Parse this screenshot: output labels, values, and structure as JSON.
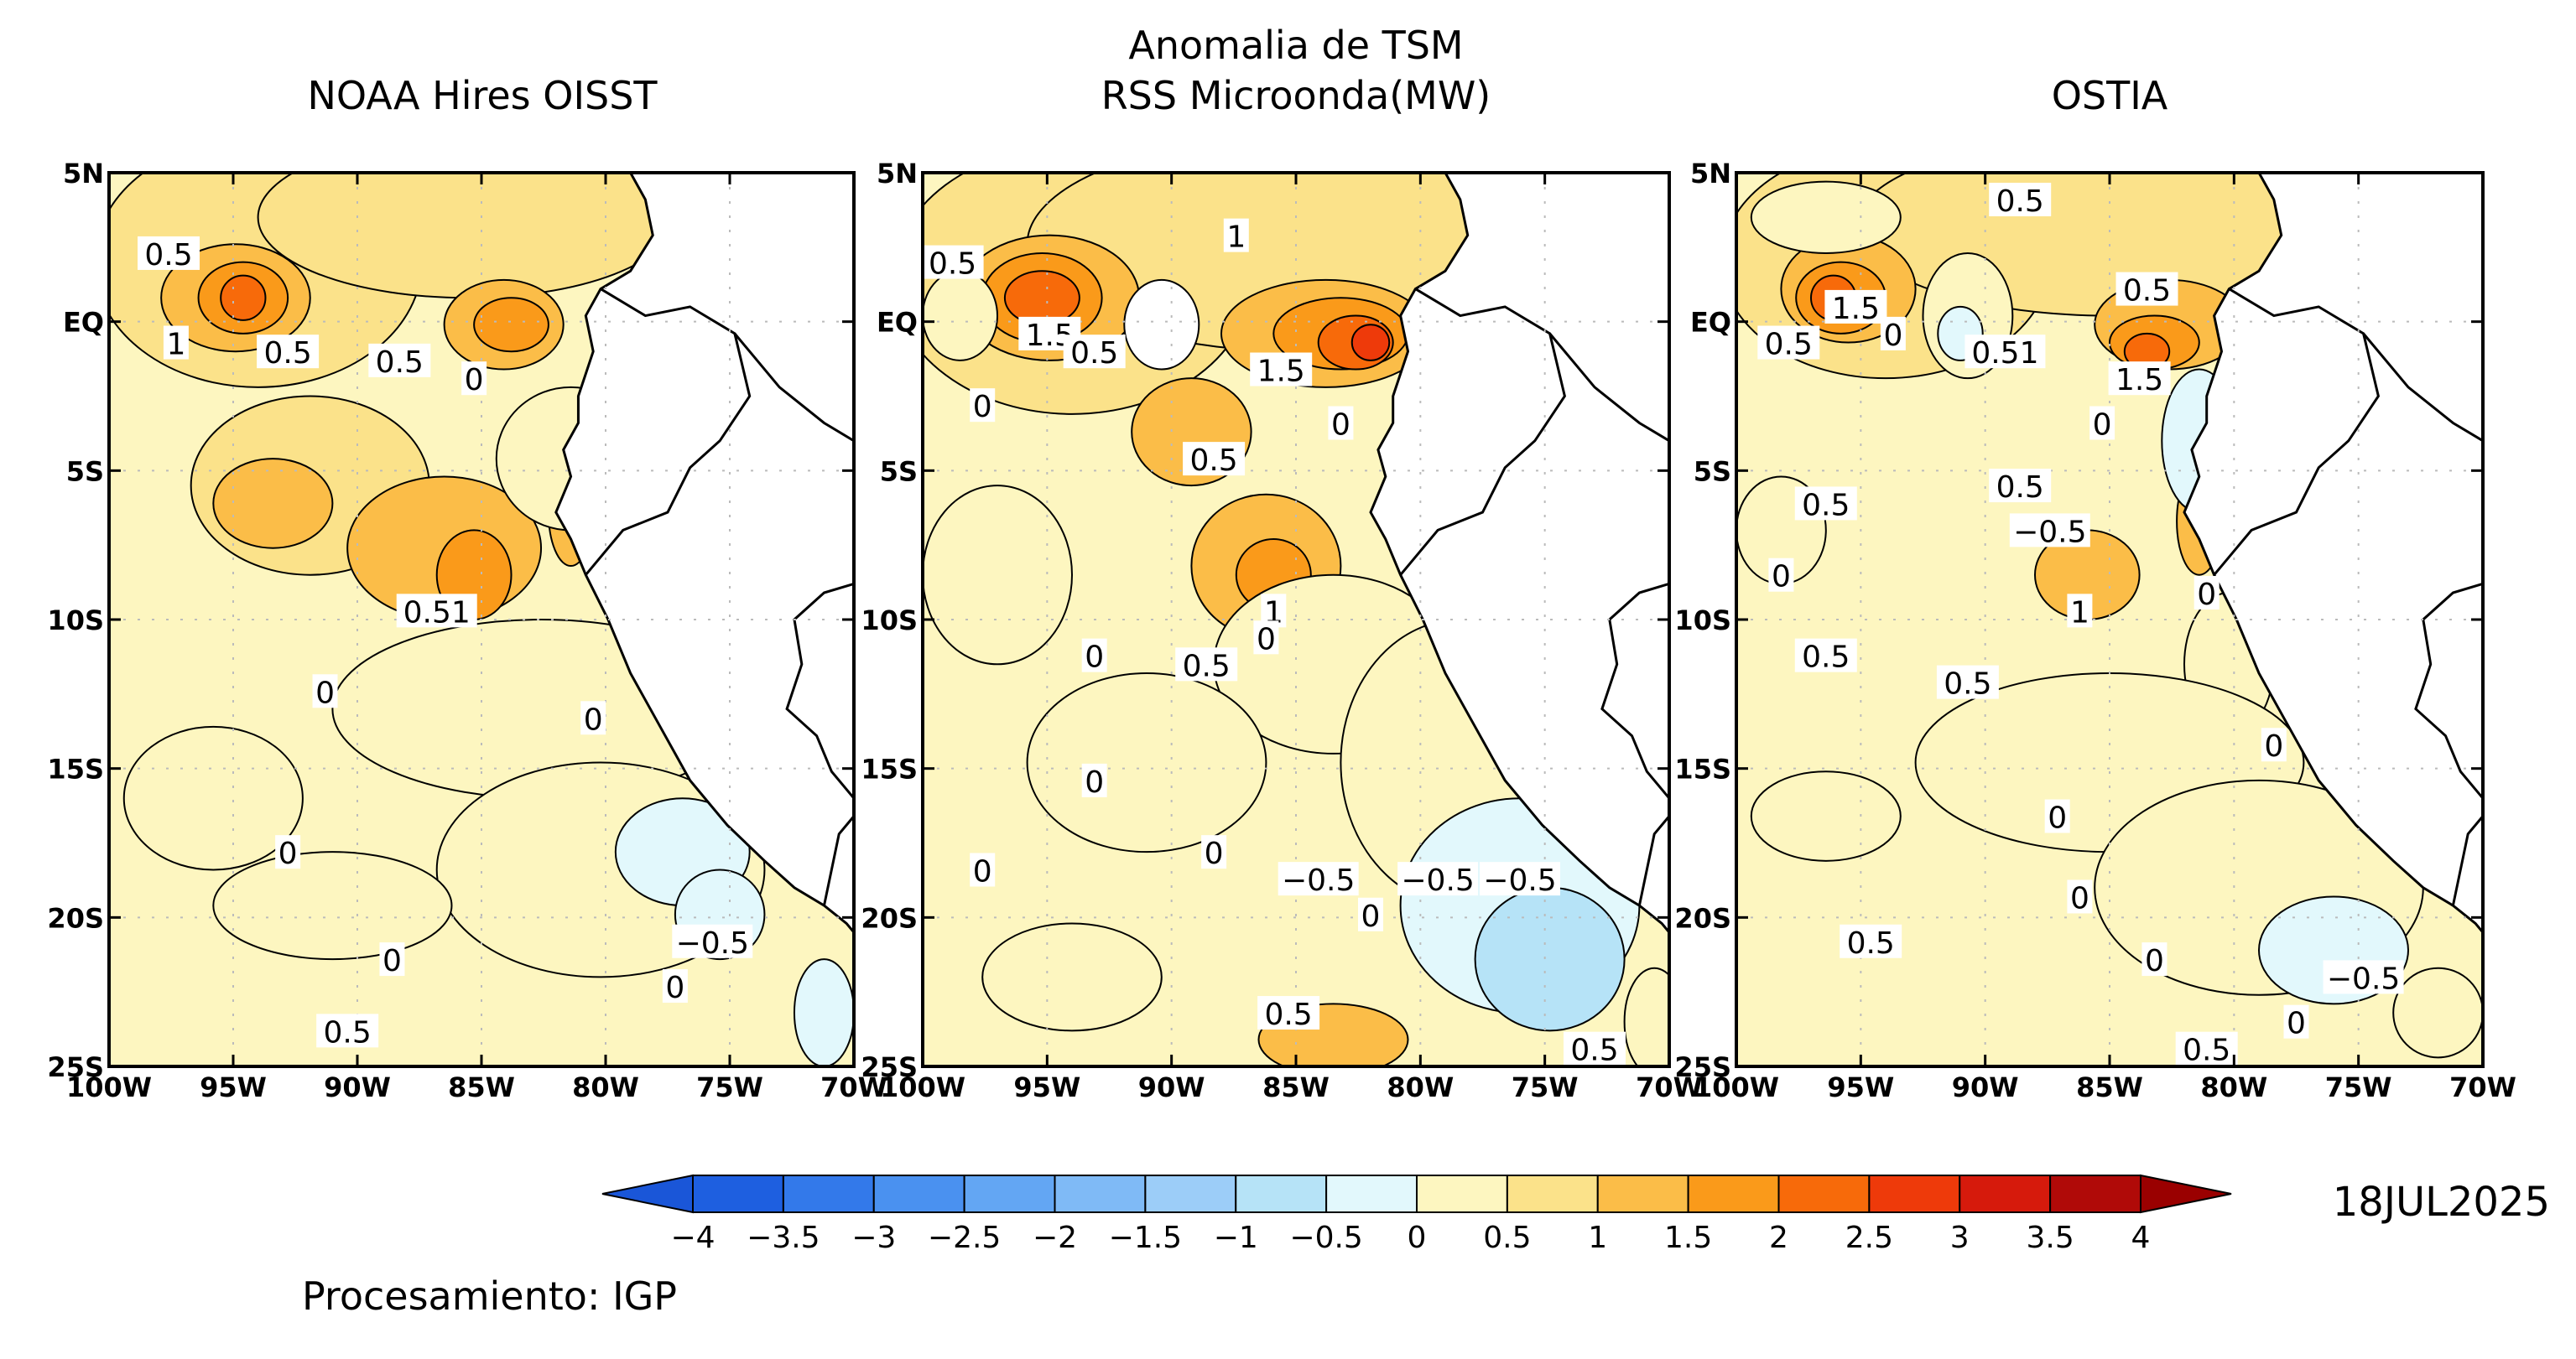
{
  "figure": {
    "main_title_line1": "Anomalia de TSM",
    "date_label": "18JUL2025",
    "credit": "Procesamiento: IGP"
  },
  "panels": [
    {
      "key": "oisst",
      "title": "NOAA Hires OISST"
    },
    {
      "key": "rss",
      "title": "RSS Microonda(MW)"
    },
    {
      "key": "ostia",
      "title": "OSTIA"
    }
  ],
  "axes": {
    "lat_labels": [
      "5N",
      "EQ",
      "5S",
      "10S",
      "15S",
      "20S",
      "25S"
    ],
    "lon_labels": [
      "100W",
      "95W",
      "90W",
      "85W",
      "80W",
      "75W",
      "70W"
    ],
    "lat_values": [
      5,
      0,
      -5,
      -10,
      -15,
      -20,
      -25
    ],
    "lon_values": [
      -100,
      -95,
      -90,
      -85,
      -80,
      -75,
      -70
    ]
  },
  "colorbar": {
    "ticks": [
      "−4",
      "−3.5",
      "−3",
      "−2.5",
      "−2",
      "−1.5",
      "−1",
      "−0.5",
      "0",
      "0.5",
      "1",
      "1.5",
      "2",
      "2.5",
      "3",
      "3.5",
      "4"
    ],
    "colors": [
      "#1e5fe0",
      "#3379ea",
      "#4a91f0",
      "#63a6f3",
      "#7fbaf6",
      "#9ccdf8",
      "#b6e3f7",
      "#e2f8fc",
      "#fdf6c0",
      "#fbe28a",
      "#fbbd48",
      "#fa9a1a",
      "#f76a0a",
      "#ee3a0a",
      "#d61a0c",
      "#b00a08"
    ],
    "low_arrow_color": "#1a56d8",
    "high_arrow_color": "#9a0000"
  },
  "contour_labels": {
    "oisst": [
      "0.5",
      "1",
      "0.5",
      "0.5",
      "0",
      "0.51",
      "0",
      "0",
      "0",
      "0",
      "0",
      "−0.5",
      "0.5"
    ],
    "rss": [
      "0.5",
      "1",
      "1.5",
      "0.5",
      "1.5",
      "0",
      "0.5",
      "0",
      "1",
      "0",
      "0",
      "0.5",
      "0",
      "0",
      "−0.5",
      "−0.5",
      "−0.5",
      "0",
      "0",
      "0.5",
      "0.5"
    ],
    "ostia": [
      "0.5",
      "1.5",
      "0.5",
      "0",
      "0.51",
      "0.5",
      "1.5",
      "0",
      "0.5",
      "−0.5",
      "0.5",
      "0",
      "0",
      "1",
      "0.5",
      "0.5",
      "0",
      "0",
      "0",
      "0.5",
      "0",
      "−0.5",
      "0",
      "0.5"
    ]
  }
}
